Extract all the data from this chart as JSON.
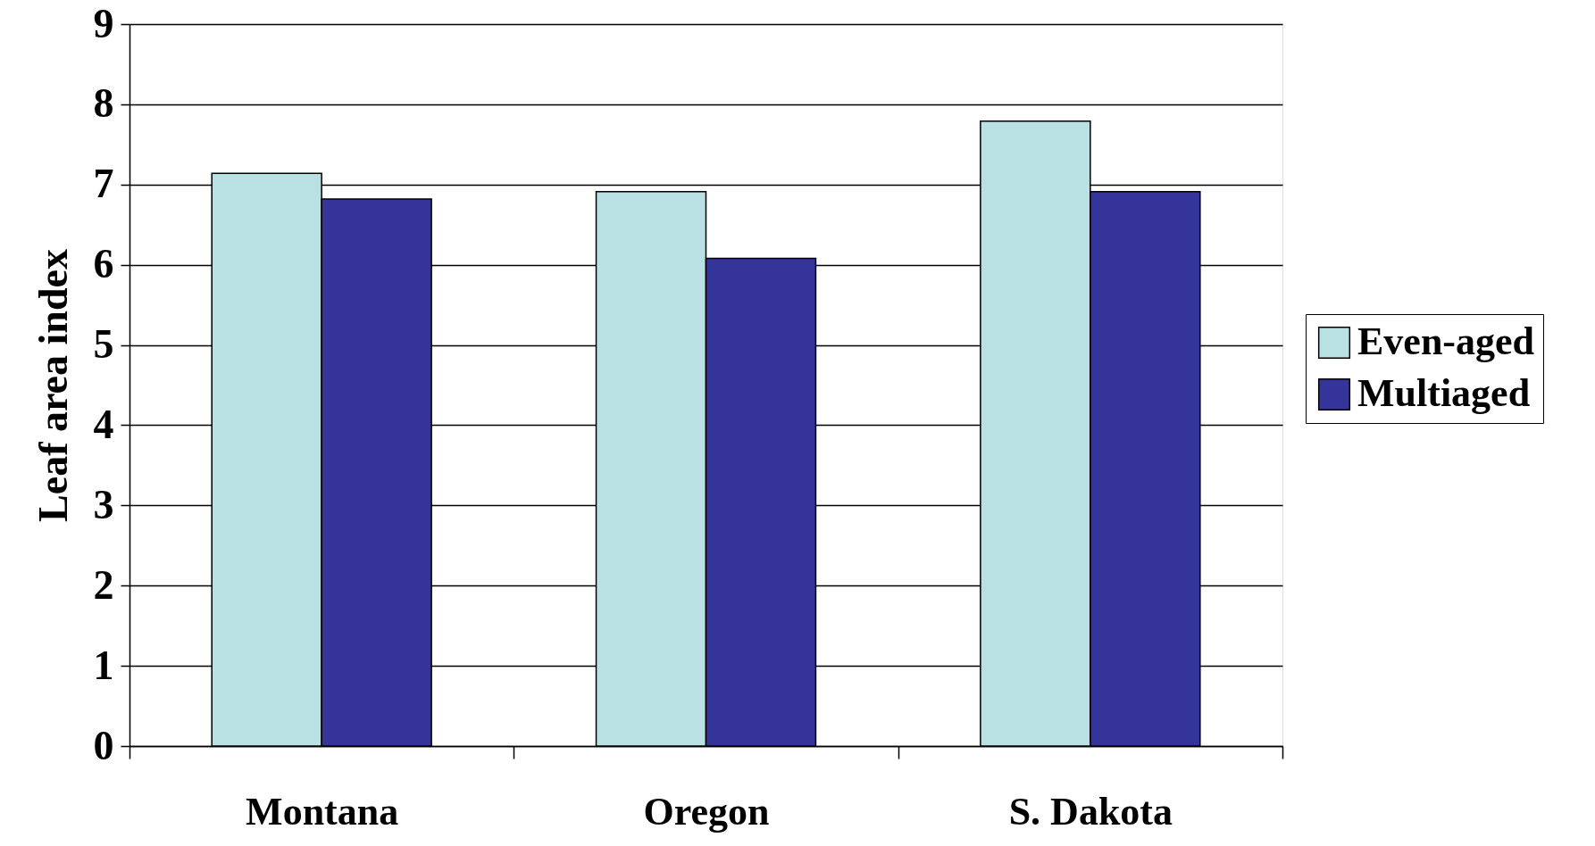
{
  "chart_data": {
    "type": "bar",
    "ylabel": "Leaf area index",
    "categories": [
      "Montana",
      "Oregon",
      "S. Dakota"
    ],
    "series": [
      {
        "name": "Even-aged",
        "color": "#b9e0e3",
        "values": [
          7.14,
          6.91,
          7.79
        ]
      },
      {
        "name": "Multiaged",
        "color": "#35349a",
        "values": [
          6.82,
          6.08,
          6.91
        ]
      }
    ],
    "ylim": [
      0,
      9
    ],
    "yticks": [
      0,
      1,
      2,
      3,
      4,
      5,
      6,
      7,
      8,
      9
    ],
    "grid": "y",
    "legend": "right"
  }
}
